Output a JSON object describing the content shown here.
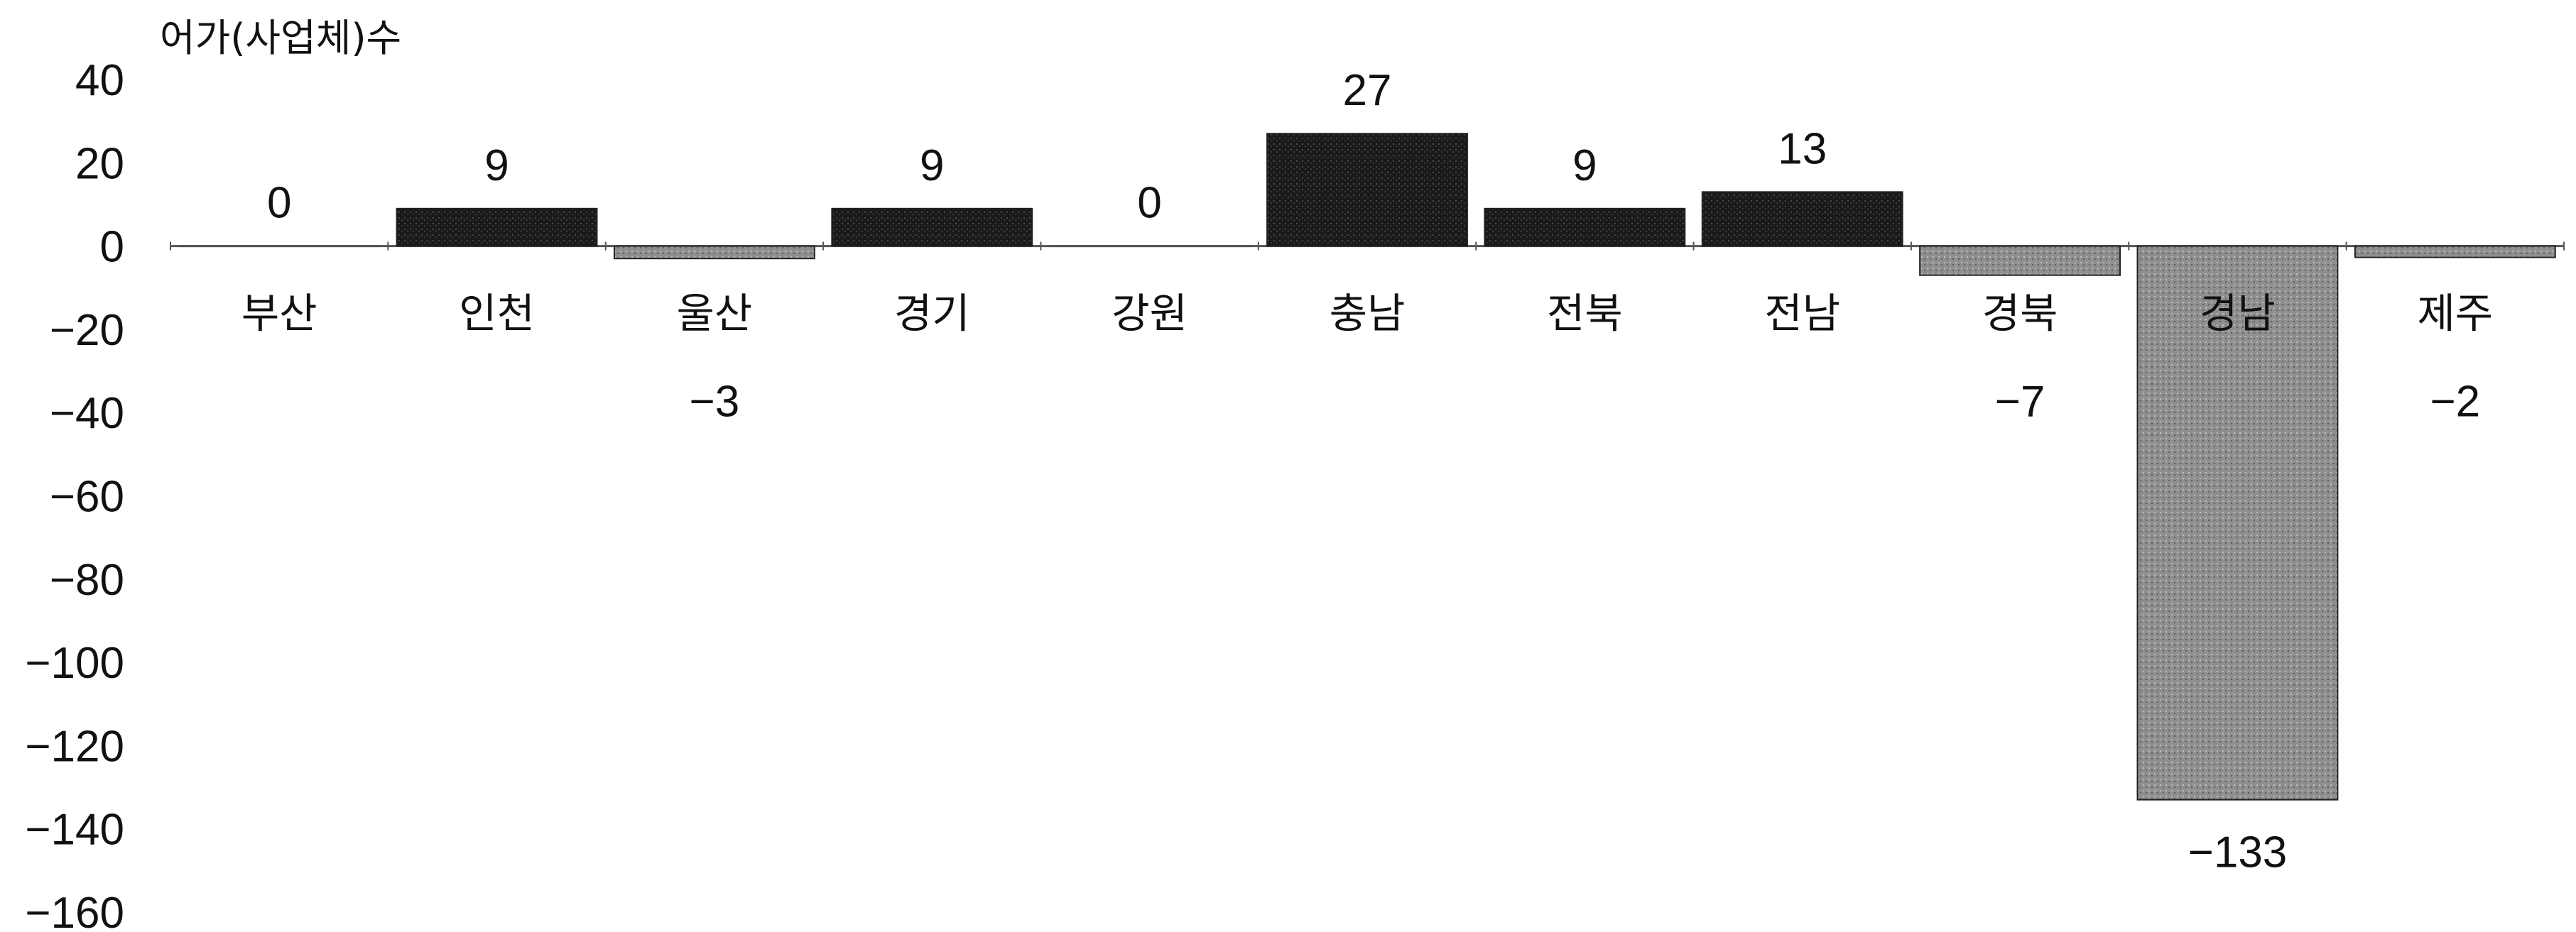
{
  "chart_data": {
    "type": "bar",
    "ylabel": "어가(사업체)수",
    "ylim": [
      -160,
      40
    ],
    "yticks": [
      40,
      20,
      0,
      -20,
      -40,
      -60,
      -80,
      -100,
      -120,
      -140,
      -160
    ],
    "grid": false,
    "categories": [
      "부산",
      "인천",
      "울산",
      "경기",
      "강원",
      "충남",
      "전북",
      "전남",
      "경북",
      "경남",
      "제주"
    ],
    "values": [
      0,
      9,
      -3,
      9,
      0,
      27,
      9,
      13,
      -7,
      -133,
      -2
    ],
    "value_labels": [
      "0",
      "9",
      "-3",
      "9",
      "0",
      "27",
      "9",
      "13",
      "-7",
      "-133",
      "-2"
    ],
    "colors": {
      "positive": "#1c1c1c",
      "negative_small": "#9a9a9a",
      "negative_large": "#7d7d7d"
    }
  }
}
